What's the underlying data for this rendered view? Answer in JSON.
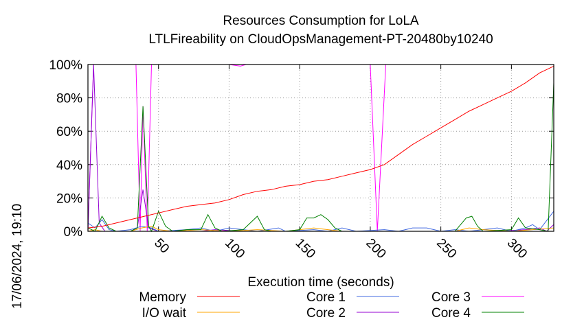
{
  "chart_data": {
    "type": "line",
    "title": "Resources Consumption for LoLA",
    "subtitle": "LTLFireability on CloudOpsManagement-PT-20480by10240",
    "xlabel": "Execution time (seconds)",
    "ylabel": "",
    "timestamp": "17/06/2024, 19:10",
    "xlim": [
      0,
      330
    ],
    "ylim": [
      0,
      100
    ],
    "x_ticks": [
      50,
      100,
      150,
      200,
      250,
      300
    ],
    "y_ticks": [
      0,
      20,
      40,
      60,
      80,
      100
    ],
    "y_tick_labels": [
      "0%",
      "20%",
      "40%",
      "60%",
      "80%",
      "100%"
    ],
    "grid": true,
    "legend_position": "bottom",
    "series": [
      {
        "name": "Memory",
        "color": "#ff0000",
        "points": [
          [
            0,
            2
          ],
          [
            10,
            3
          ],
          [
            20,
            5
          ],
          [
            30,
            7
          ],
          [
            40,
            9
          ],
          [
            50,
            11
          ],
          [
            60,
            13
          ],
          [
            70,
            15
          ],
          [
            80,
            16
          ],
          [
            90,
            17
          ],
          [
            100,
            19
          ],
          [
            110,
            22
          ],
          [
            120,
            24
          ],
          [
            130,
            25
          ],
          [
            140,
            27
          ],
          [
            150,
            28
          ],
          [
            160,
            30
          ],
          [
            170,
            31
          ],
          [
            180,
            33
          ],
          [
            190,
            35
          ],
          [
            200,
            37
          ],
          [
            210,
            40
          ],
          [
            220,
            46
          ],
          [
            230,
            52
          ],
          [
            240,
            57
          ],
          [
            250,
            62
          ],
          [
            260,
            67
          ],
          [
            270,
            72
          ],
          [
            280,
            76
          ],
          [
            290,
            80
          ],
          [
            300,
            84
          ],
          [
            310,
            89
          ],
          [
            320,
            95
          ],
          [
            330,
            99
          ]
        ]
      },
      {
        "name": "I/O wait",
        "color": "#ffa500",
        "points": [
          [
            0,
            0
          ],
          [
            5,
            1
          ],
          [
            10,
            0
          ],
          [
            20,
            0
          ],
          [
            30,
            0
          ],
          [
            38,
            2
          ],
          [
            45,
            3
          ],
          [
            50,
            1
          ],
          [
            60,
            0
          ],
          [
            80,
            1
          ],
          [
            100,
            0
          ],
          [
            120,
            1
          ],
          [
            140,
            0
          ],
          [
            150,
            1
          ],
          [
            160,
            2
          ],
          [
            170,
            1
          ],
          [
            180,
            0
          ],
          [
            200,
            0
          ],
          [
            220,
            0
          ],
          [
            240,
            0
          ],
          [
            260,
            0
          ],
          [
            270,
            2
          ],
          [
            280,
            1
          ],
          [
            300,
            0
          ],
          [
            315,
            1
          ],
          [
            330,
            2
          ]
        ]
      },
      {
        "name": "Core 1",
        "color": "#4169e1",
        "points": [
          [
            0,
            5
          ],
          [
            5,
            2
          ],
          [
            10,
            7
          ],
          [
            15,
            1
          ],
          [
            20,
            0
          ],
          [
            30,
            1
          ],
          [
            38,
            3
          ],
          [
            45,
            2
          ],
          [
            50,
            0
          ],
          [
            70,
            1
          ],
          [
            80,
            2
          ],
          [
            90,
            0
          ],
          [
            100,
            2
          ],
          [
            110,
            1
          ],
          [
            120,
            0
          ],
          [
            135,
            2
          ],
          [
            140,
            0
          ],
          [
            160,
            1
          ],
          [
            170,
            0
          ],
          [
            180,
            2
          ],
          [
            190,
            0
          ],
          [
            210,
            1
          ],
          [
            220,
            0
          ],
          [
            230,
            2
          ],
          [
            240,
            2
          ],
          [
            250,
            0
          ],
          [
            260,
            1
          ],
          [
            270,
            0
          ],
          [
            290,
            2
          ],
          [
            300,
            0
          ],
          [
            310,
            2
          ],
          [
            315,
            4
          ],
          [
            320,
            1
          ],
          [
            330,
            12
          ]
        ]
      },
      {
        "name": "Core 2",
        "color": "#9400d3",
        "points": [
          [
            0,
            0
          ],
          [
            4,
            100
          ],
          [
            8,
            5
          ],
          [
            12,
            0
          ],
          [
            30,
            0
          ],
          [
            35,
            2
          ],
          [
            39,
            25
          ],
          [
            43,
            2
          ],
          [
            50,
            0
          ],
          [
            80,
            0
          ],
          [
            90,
            1
          ],
          [
            110,
            0
          ],
          [
            140,
            0
          ],
          [
            170,
            0
          ],
          [
            200,
            0
          ],
          [
            230,
            0
          ],
          [
            260,
            0
          ],
          [
            290,
            0
          ],
          [
            310,
            1
          ],
          [
            320,
            2
          ],
          [
            325,
            0
          ],
          [
            330,
            4
          ]
        ]
      },
      {
        "name": "Core 3",
        "color": "#ff00ff",
        "points": [
          [
            0,
            0
          ],
          [
            4,
            100
          ],
          [
            8,
            100
          ],
          [
            10,
            100
          ],
          [
            34,
            100
          ],
          [
            37,
            0
          ],
          [
            39,
            75
          ],
          [
            42,
            0
          ],
          [
            45,
            100
          ],
          [
            100,
            100
          ],
          [
            108,
            99
          ],
          [
            112,
            100
          ],
          [
            200,
            100
          ],
          [
            205,
            0
          ],
          [
            211,
            100
          ],
          [
            330,
            100
          ]
        ]
      },
      {
        "name": "Core 4",
        "color": "#008000",
        "points": [
          [
            0,
            2
          ],
          [
            5,
            0
          ],
          [
            10,
            9
          ],
          [
            15,
            2
          ],
          [
            20,
            0
          ],
          [
            30,
            0
          ],
          [
            35,
            2
          ],
          [
            39,
            75
          ],
          [
            43,
            3
          ],
          [
            45,
            0
          ],
          [
            50,
            12
          ],
          [
            55,
            3
          ],
          [
            60,
            0
          ],
          [
            70,
            1
          ],
          [
            80,
            1
          ],
          [
            85,
            10
          ],
          [
            90,
            2
          ],
          [
            95,
            0
          ],
          [
            110,
            1
          ],
          [
            120,
            9
          ],
          [
            125,
            1
          ],
          [
            130,
            0
          ],
          [
            140,
            0
          ],
          [
            150,
            1
          ],
          [
            155,
            8
          ],
          [
            160,
            8
          ],
          [
            165,
            10
          ],
          [
            170,
            7
          ],
          [
            175,
            2
          ],
          [
            180,
            0
          ],
          [
            200,
            0
          ],
          [
            220,
            0
          ],
          [
            240,
            0
          ],
          [
            260,
            0
          ],
          [
            268,
            8
          ],
          [
            272,
            9
          ],
          [
            276,
            3
          ],
          [
            280,
            0
          ],
          [
            300,
            1
          ],
          [
            305,
            8
          ],
          [
            310,
            2
          ],
          [
            320,
            1
          ],
          [
            326,
            0
          ],
          [
            330,
            89
          ]
        ]
      }
    ]
  }
}
